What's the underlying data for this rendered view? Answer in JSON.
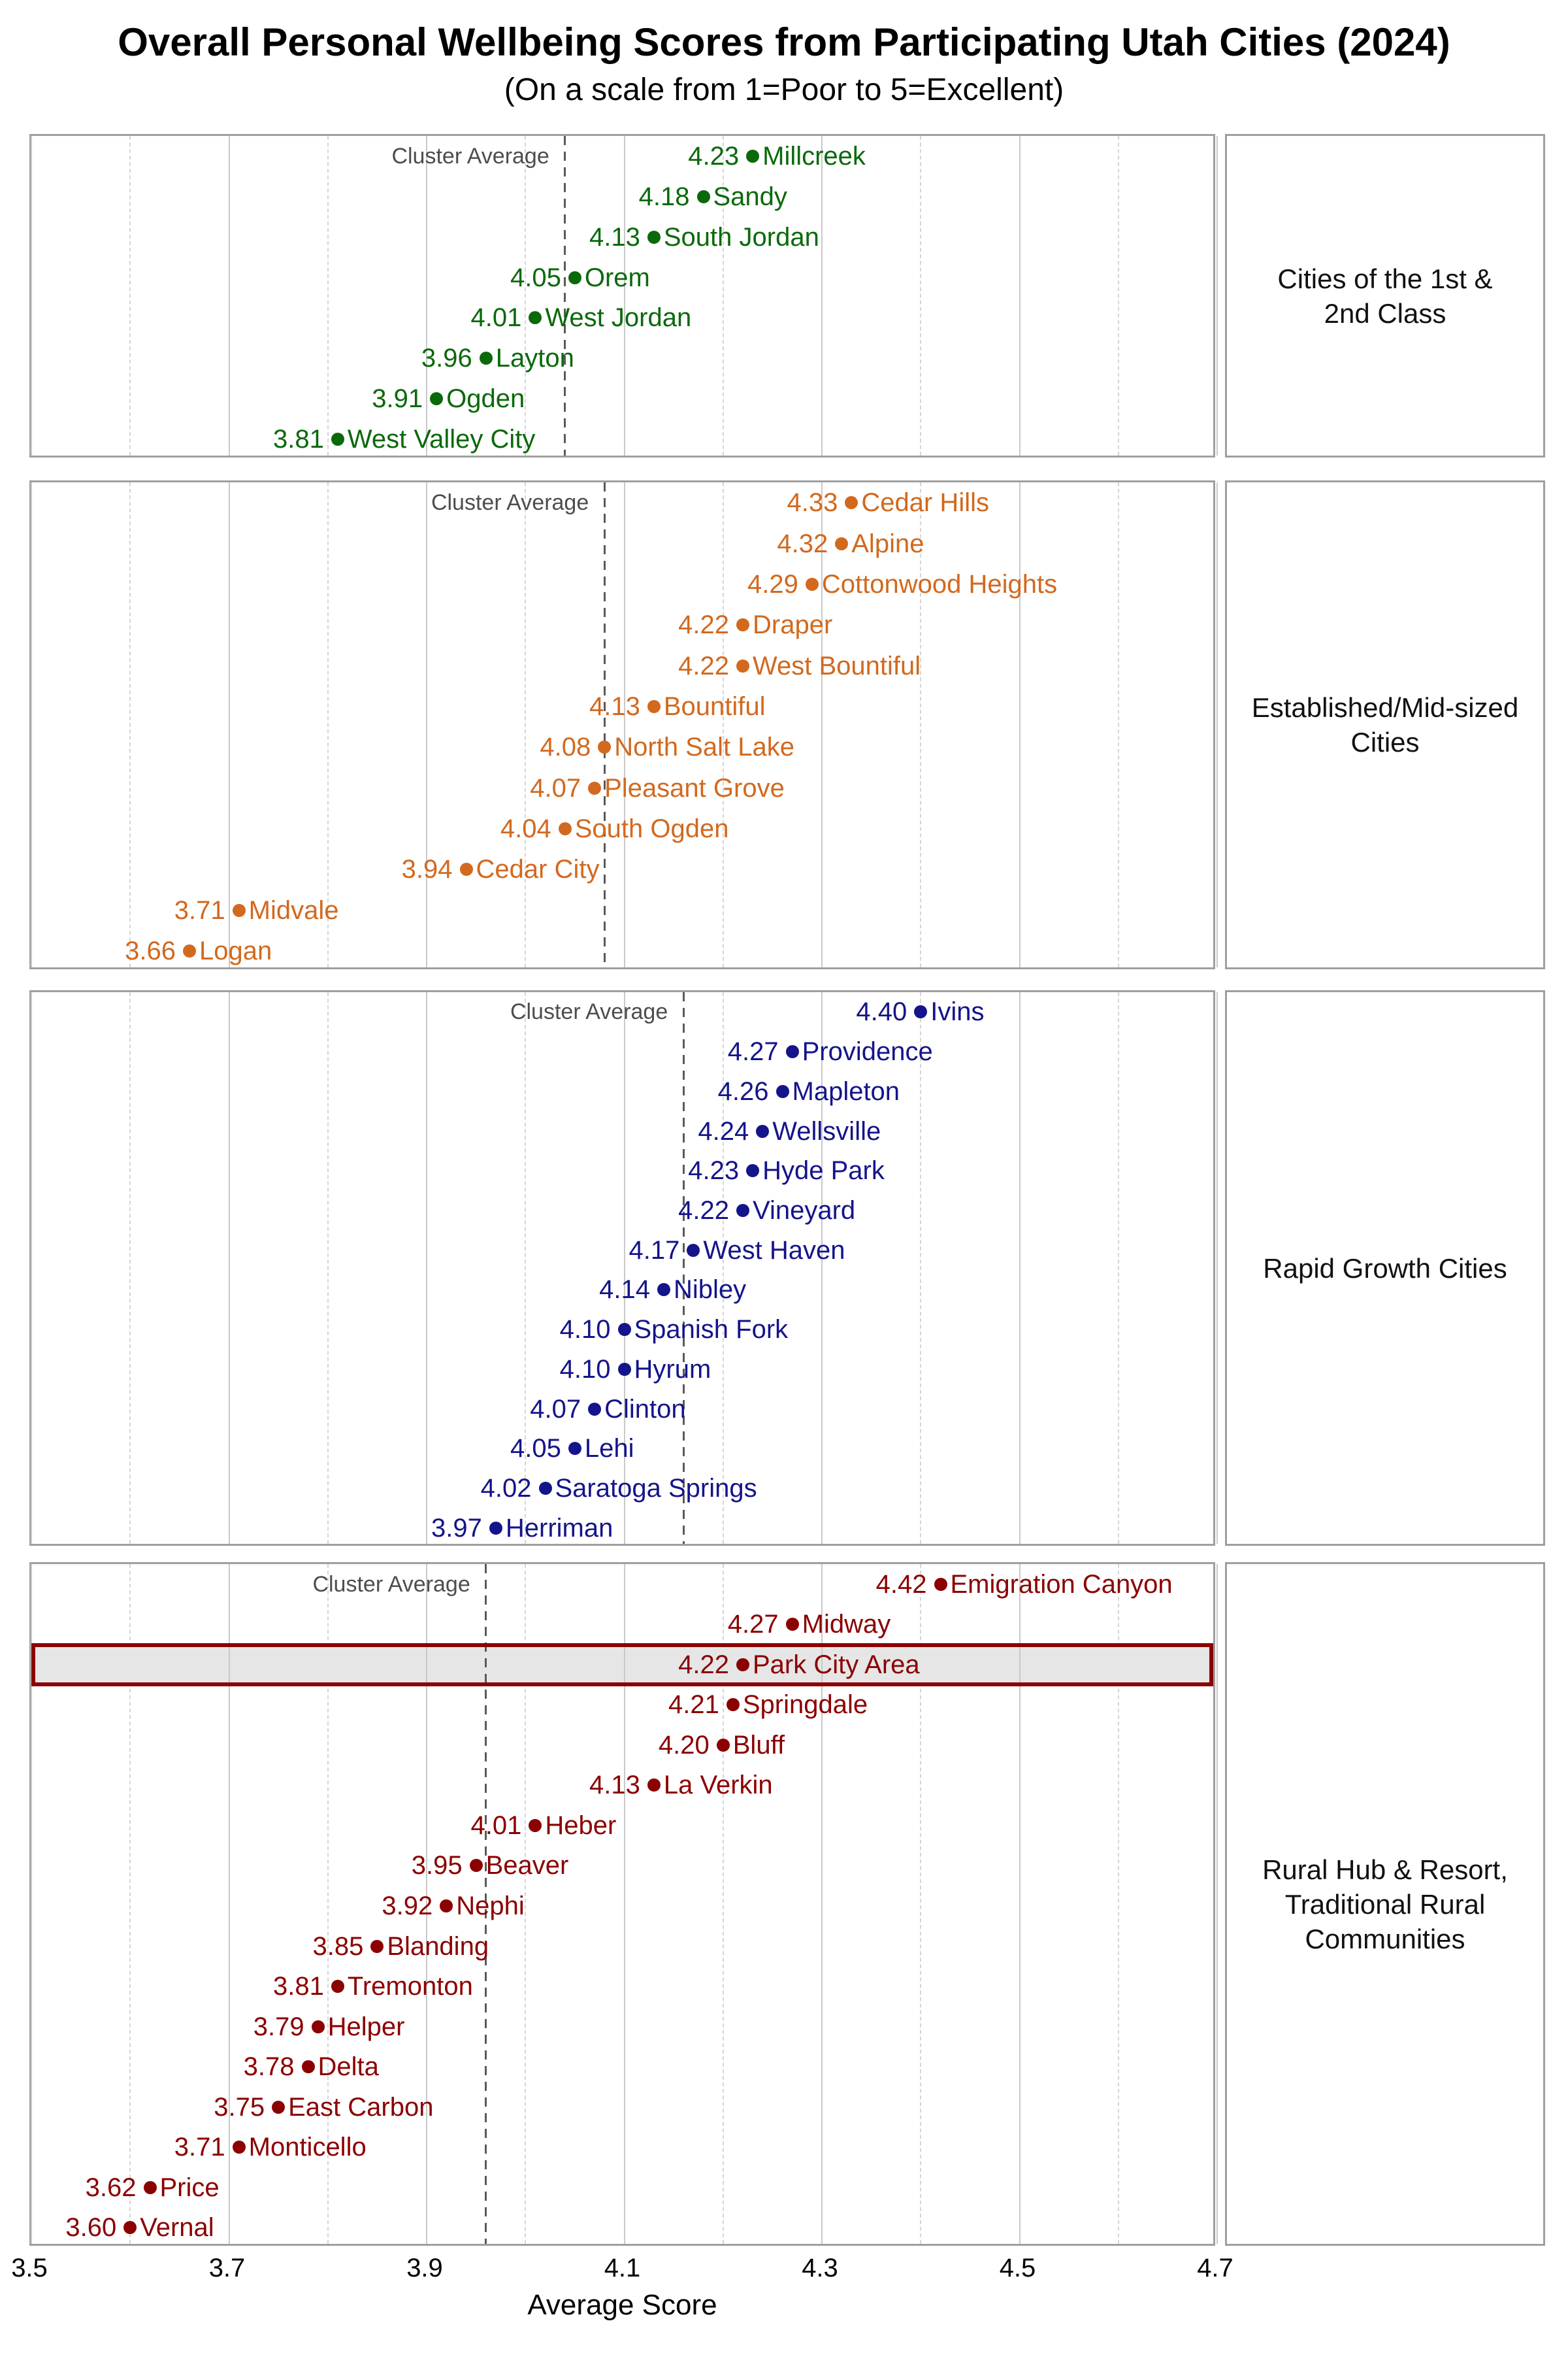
{
  "title": "Overall Personal Wellbeing Scores from Participating Utah Cities (2024)",
  "subtitle": "(On a scale from 1=Poor to 5=Excellent)",
  "annotations": {
    "cluster_average_label": "Cluster Average"
  },
  "colors": {
    "cluster_1": "#0a690a",
    "cluster_2": "#d2691e",
    "cluster_3": "#14148b",
    "cluster_4": "#8b0000",
    "highlight_fill": "#e6e6e6",
    "highlight_border": "#8b0000",
    "grid_major": "#c9c9c9",
    "grid_minor": "#d6d6d6",
    "panel_border": "#9f9f9f",
    "cluster_average_line": "#5a5a5a",
    "annotation_text": "#4d4d4d"
  },
  "x_axis": {
    "title": "Average Score",
    "major_ticks": [
      3.5,
      3.7,
      3.9,
      4.1,
      4.3,
      4.5,
      4.7
    ],
    "minor_ticks": [
      3.6,
      3.8,
      4.0,
      4.2,
      4.4,
      4.6
    ],
    "range": [
      3.5,
      4.7
    ]
  },
  "chart_data": {
    "type": "scatter",
    "subtype": "faceted-dot-plot",
    "title": "Overall Personal Wellbeing Scores from Participating Utah Cities (2024)",
    "xlabel": "Average Score",
    "xlim": [
      3.5,
      4.7
    ],
    "grid": "major-solid-minor-dashed",
    "facets": [
      {
        "label": "Cities of the 1st & 2nd Class",
        "label_lines": [
          "Cities of the 1st &",
          "2nd Class"
        ],
        "color": "#0a690a",
        "cluster_average": 4.04,
        "cities": [
          {
            "name": "Millcreek",
            "score": 4.23
          },
          {
            "name": "Sandy",
            "score": 4.18
          },
          {
            "name": "South Jordan",
            "score": 4.13
          },
          {
            "name": "Orem",
            "score": 4.05
          },
          {
            "name": "West Jordan",
            "score": 4.01
          },
          {
            "name": "Layton",
            "score": 3.96
          },
          {
            "name": "Ogden",
            "score": 3.91
          },
          {
            "name": "West Valley City",
            "score": 3.81
          }
        ]
      },
      {
        "label": "Established/Mid-sized Cities",
        "label_lines": [
          "Established/Mid-sized",
          "Cities"
        ],
        "color": "#d2691e",
        "cluster_average": 4.08,
        "cities": [
          {
            "name": "Cedar Hills",
            "score": 4.33
          },
          {
            "name": "Alpine",
            "score": 4.32
          },
          {
            "name": "Cottonwood Heights",
            "score": 4.29
          },
          {
            "name": "Draper",
            "score": 4.22
          },
          {
            "name": "West Bountiful",
            "score": 4.22
          },
          {
            "name": "Bountiful",
            "score": 4.13
          },
          {
            "name": "North Salt Lake",
            "score": 4.08
          },
          {
            "name": "Pleasant Grove",
            "score": 4.07
          },
          {
            "name": "South Ogden",
            "score": 4.04
          },
          {
            "name": "Cedar City",
            "score": 3.94
          },
          {
            "name": "Midvale",
            "score": 3.71
          },
          {
            "name": "Logan",
            "score": 3.66
          }
        ]
      },
      {
        "label": "Rapid Growth Cities",
        "label_lines": [
          "Rapid Growth Cities"
        ],
        "color": "#14148b",
        "cluster_average": 4.16,
        "cities": [
          {
            "name": "Ivins",
            "score": 4.4
          },
          {
            "name": "Providence",
            "score": 4.27
          },
          {
            "name": "Mapleton",
            "score": 4.26
          },
          {
            "name": "Wellsville",
            "score": 4.24
          },
          {
            "name": "Hyde Park",
            "score": 4.23
          },
          {
            "name": "Vineyard",
            "score": 4.22
          },
          {
            "name": "West Haven",
            "score": 4.17
          },
          {
            "name": "Nibley",
            "score": 4.14
          },
          {
            "name": "Spanish Fork",
            "score": 4.1
          },
          {
            "name": "Hyrum",
            "score": 4.1
          },
          {
            "name": "Clinton",
            "score": 4.07
          },
          {
            "name": "Lehi",
            "score": 4.05
          },
          {
            "name": "Saratoga Springs",
            "score": 4.02
          },
          {
            "name": "Herriman",
            "score": 3.97
          }
        ]
      },
      {
        "label": "Rural Hub & Resort, Traditional Rural Communities",
        "label_lines": [
          "Rural Hub & Resort,",
          "Traditional Rural",
          "Communities"
        ],
        "color": "#8b0000",
        "cluster_average": 3.96,
        "highlighted_city": "Park City Area",
        "cities": [
          {
            "name": "Emigration Canyon",
            "score": 4.42
          },
          {
            "name": "Midway",
            "score": 4.27
          },
          {
            "name": "Park City Area",
            "score": 4.22
          },
          {
            "name": "Springdale",
            "score": 4.21
          },
          {
            "name": "Bluff",
            "score": 4.2
          },
          {
            "name": "La Verkin",
            "score": 4.13
          },
          {
            "name": "Heber",
            "score": 4.01
          },
          {
            "name": "Beaver",
            "score": 3.95
          },
          {
            "name": "Nephi",
            "score": 3.92
          },
          {
            "name": "Blanding",
            "score": 3.85
          },
          {
            "name": "Tremonton",
            "score": 3.81
          },
          {
            "name": "Helper",
            "score": 3.79
          },
          {
            "name": "Delta",
            "score": 3.78
          },
          {
            "name": "East Carbon",
            "score": 3.75
          },
          {
            "name": "Monticello",
            "score": 3.71
          },
          {
            "name": "Price",
            "score": 3.62
          },
          {
            "name": "Vernal",
            "score": 3.6
          }
        ]
      }
    ]
  }
}
